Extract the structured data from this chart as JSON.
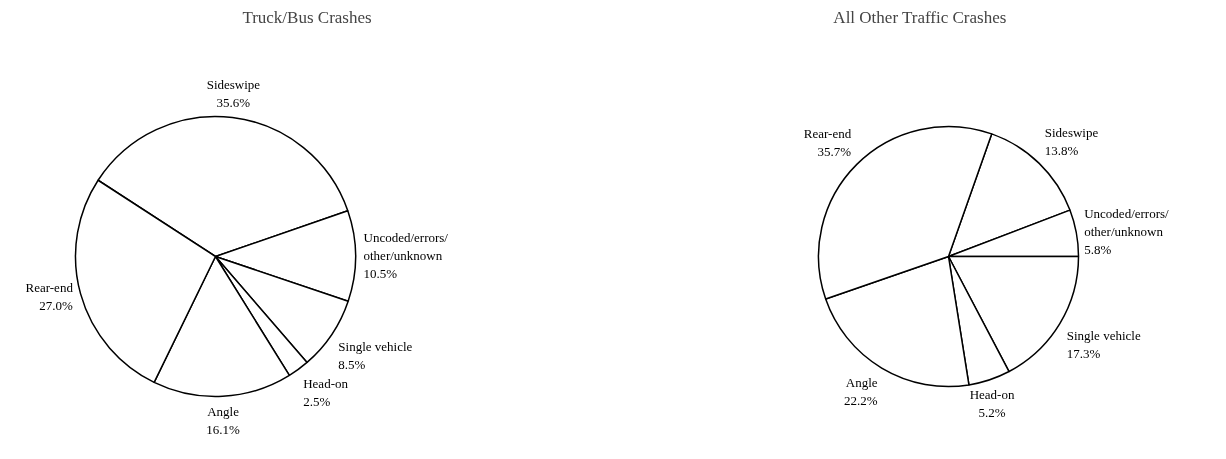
{
  "chart_data": [
    {
      "type": "pie",
      "title": "Truck/Bus Crashes",
      "categories": [
        "Sideswipe",
        "Uncoded/errors/other/unknown",
        "Single vehicle",
        "Head-on",
        "Angle",
        "Rear-end"
      ],
      "values": [
        35.6,
        10.5,
        8.5,
        2.5,
        16.1,
        27.0
      ],
      "value_labels": [
        "35.6%",
        "10.5%",
        "8.5%",
        "2.5%",
        "16.1%",
        "27.0%"
      ],
      "colors": [
        "#ffffff",
        "#ffffff",
        "#ffffff",
        "#ffffff",
        "#ffffff",
        "#ffffff"
      ]
    },
    {
      "type": "pie",
      "title": "All Other Traffic Crashes",
      "categories": [
        "Sideswipe",
        "Uncoded/errors/other/unknown",
        "Single vehicle",
        "Head-on",
        "Angle",
        "Rear-end"
      ],
      "values": [
        13.8,
        5.8,
        17.3,
        5.2,
        22.2,
        35.7
      ],
      "value_labels": [
        "13.8%",
        "5.8%",
        "17.3%",
        "5.2%",
        "22.2%",
        "35.7%"
      ],
      "colors": [
        "#ffffff",
        "#ffffff",
        "#ffffff",
        "#ffffff",
        "#ffffff",
        "#ffffff"
      ]
    }
  ]
}
